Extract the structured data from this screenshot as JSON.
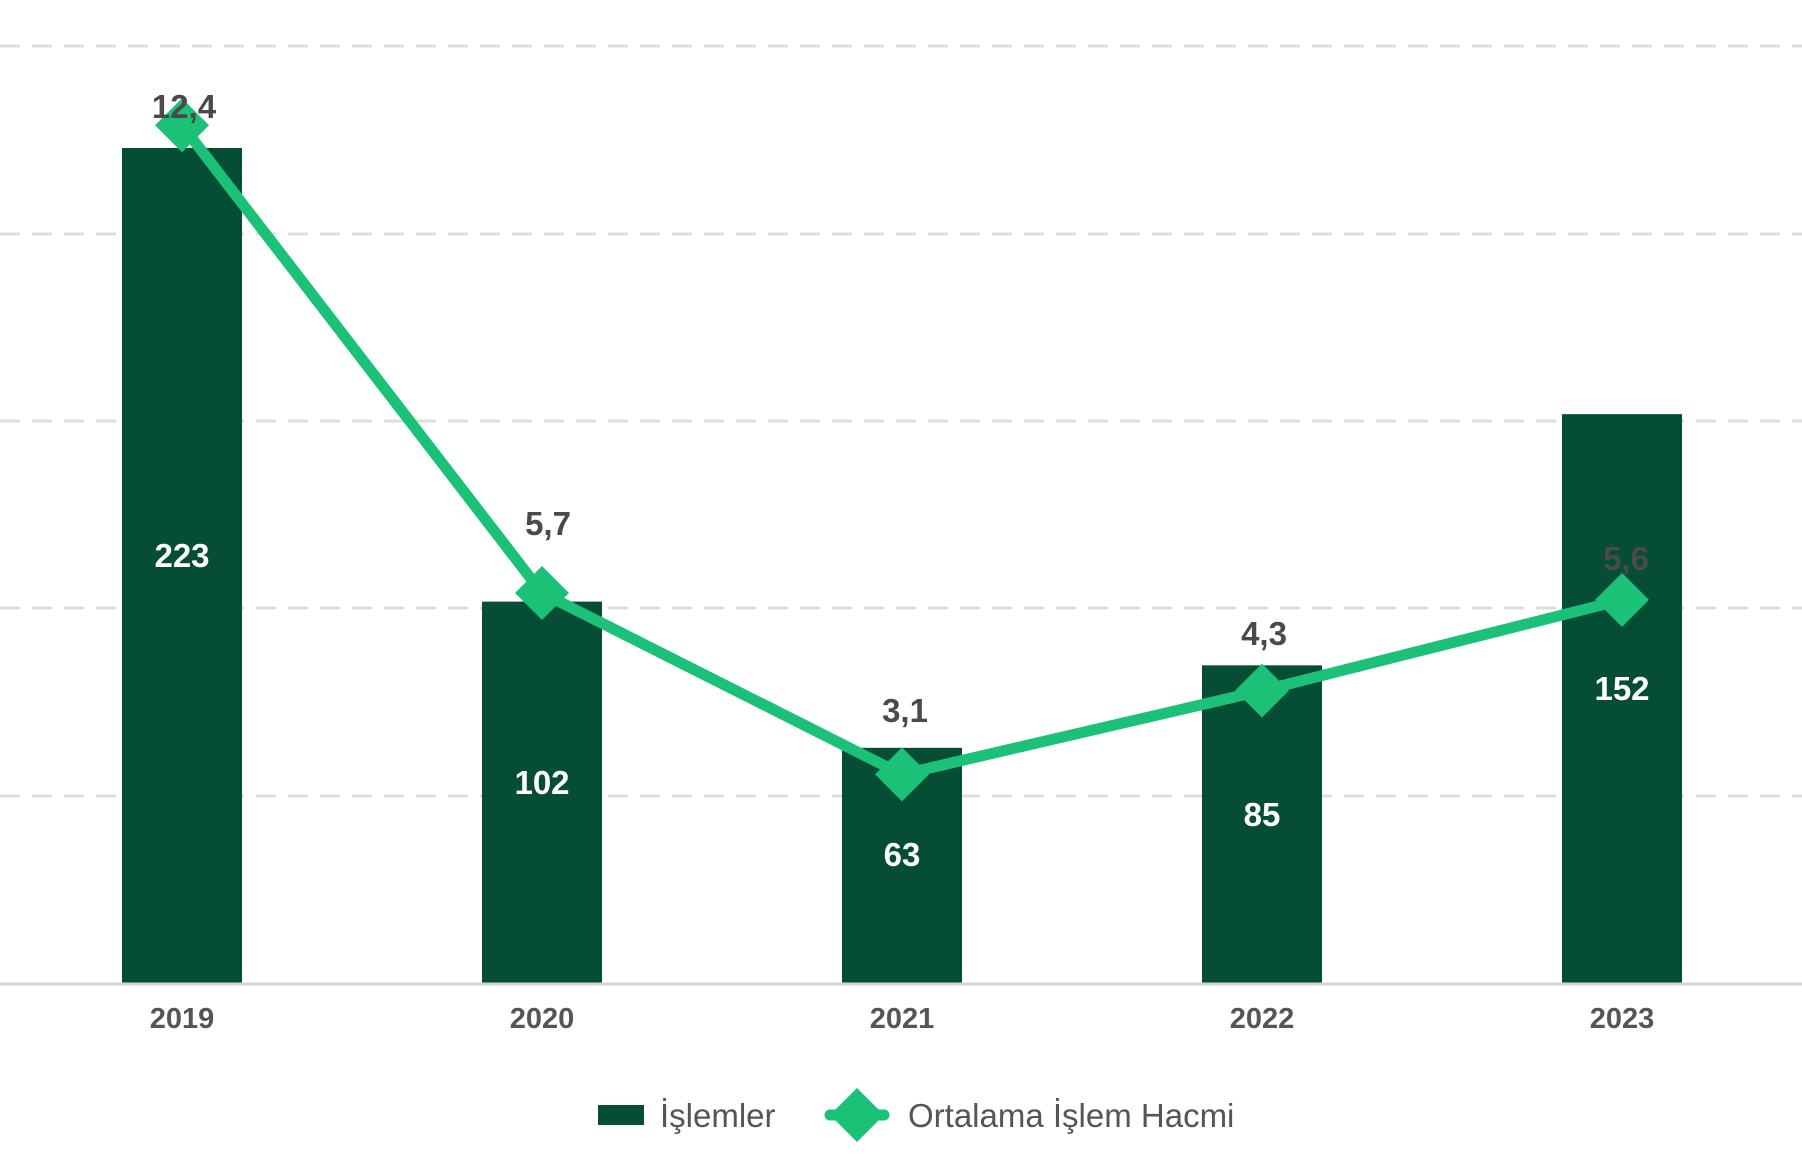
{
  "chart_data": {
    "type": "bar",
    "title": "",
    "xlabel": "",
    "ylabel": "",
    "categories": [
      "2019",
      "2020",
      "2021",
      "2022",
      "2023"
    ],
    "series": [
      {
        "name": "İşlemler",
        "type": "bar",
        "axis": "left",
        "values": [
          223,
          102,
          63,
          85,
          152
        ],
        "labels": [
          "223",
          "102",
          "63",
          "85",
          "152"
        ],
        "color": "#064d36"
      },
      {
        "name": "Ortalama İşlem Hacmi",
        "type": "line",
        "axis": "right",
        "marker": "diamond",
        "values": [
          12.4,
          5.7,
          3.1,
          4.3,
          5.6
        ],
        "labels": [
          "12,4",
          "5,7",
          "3,1",
          "4,3",
          "5,6"
        ],
        "color": "#1cc178"
      }
    ],
    "ylim": [
      0,
      250
    ],
    "ylim_right": [
      0,
      14
    ],
    "grid": true,
    "grid_style": "dashed",
    "legend_position": "bottom-center"
  }
}
